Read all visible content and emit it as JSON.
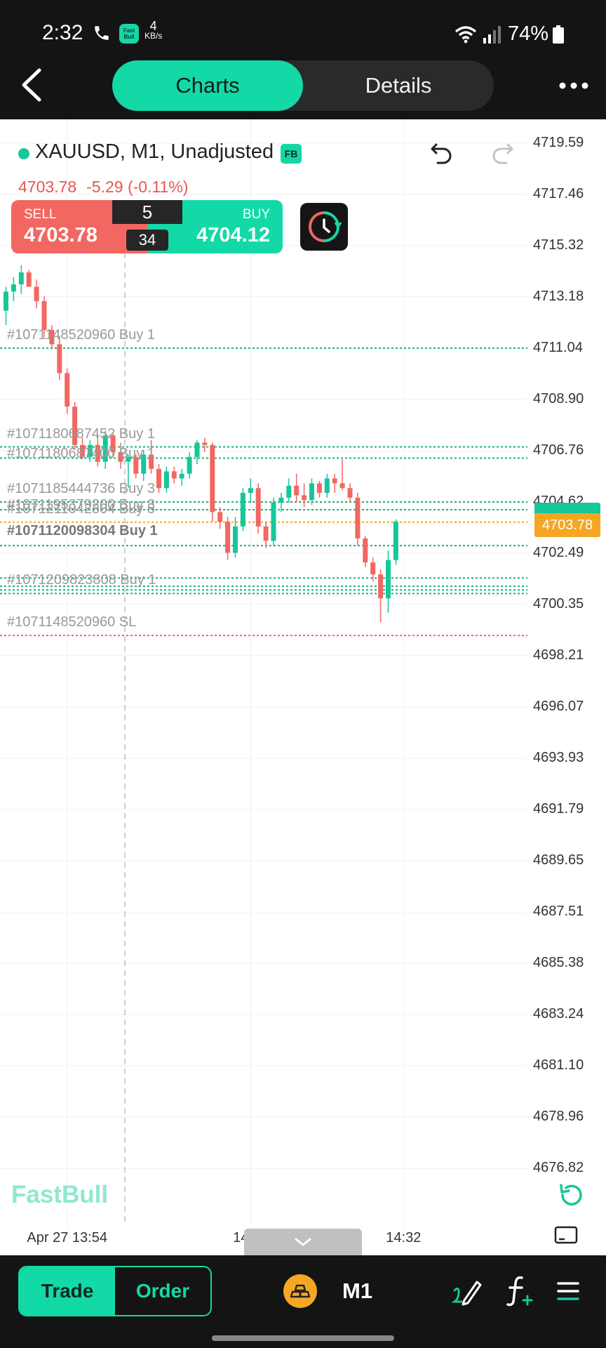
{
  "status_bar": {
    "time": "2:32",
    "net_speed_value": "4",
    "net_speed_unit": "KB/s",
    "app_icon_text": "Fast Bull",
    "battery": "74%"
  },
  "header": {
    "tabs": [
      {
        "label": "Charts",
        "active": true
      },
      {
        "label": "Details",
        "active": false
      }
    ]
  },
  "symbol": {
    "title": "XAUUSD, M1, Unadjusted",
    "badge": "FB",
    "last_price": "4703.78",
    "change": "-5.29 (-0.11%)"
  },
  "trade_panel": {
    "sell_label": "SELL",
    "sell_price": "4703.78",
    "buy_label": "BUY",
    "buy_price": "4704.12",
    "spread": "5",
    "spread_sub": "34"
  },
  "orders": [
    {
      "label": "#1071148520960 Buy 1",
      "price": 4711.04,
      "color": "#18b07f"
    },
    {
      "label": "#1071180687452 Buy 1",
      "price": 4706.92,
      "color": "#18b07f"
    },
    {
      "label": "#1071180687400 Buy 1",
      "price": 4706.45,
      "color": "#18b07f"
    },
    {
      "label": "#1071185444736 Buy 3",
      "price": 4704.62,
      "color": "#18b07f"
    },
    {
      "label": "#1071195379200 Buy 3",
      "price": 4704.3,
      "color": "#18b07f"
    },
    {
      "label": "#1071211042304 Buy 5",
      "price": 4703.78,
      "color": "#f5a623"
    },
    {
      "label": "#1071120098304 Buy 1",
      "price": 4702.8,
      "color": "#18b07f"
    },
    {
      "label": "#1071209823808 Buy 1",
      "price": 4701.1,
      "color": "#18b07f"
    },
    {
      "label": "#1071148520960 SL",
      "price": 4699.05,
      "color": "#f26761"
    }
  ],
  "chart_data": {
    "type": "candlestick",
    "symbol": "XAUUSD",
    "timeframe": "M1",
    "ylim": [
      4676.82,
      4719.59
    ],
    "y_ticks": [
      "4719.59",
      "4717.46",
      "4715.32",
      "4713.18",
      "4711.04",
      "4708.90",
      "4706.76",
      "4704.62",
      "4702.49",
      "4700.35",
      "4698.21",
      "4696.07",
      "4693.93",
      "4691.79",
      "4689.65",
      "4687.51",
      "4685.38",
      "4683.24",
      "4681.10",
      "4678.96",
      "4676.82"
    ],
    "current_price": "4703.78",
    "x_ticks": [
      {
        "label": "Apr 27 13:54",
        "index": 8
      },
      {
        "label": "14:13",
        "index": 32
      },
      {
        "label": "14:32",
        "index": 52
      }
    ],
    "candles": [
      [
        4712.6,
        4713.6,
        4712.0,
        4713.4
      ],
      [
        4713.4,
        4714.0,
        4713.0,
        4713.7
      ],
      [
        4713.7,
        4714.5,
        4713.3,
        4714.2
      ],
      [
        4714.2,
        4714.3,
        4713.6,
        4713.6
      ],
      [
        4713.6,
        4713.9,
        4712.7,
        4713.0
      ],
      [
        4713.0,
        4713.2,
        4711.5,
        4711.8
      ],
      [
        4711.8,
        4712.0,
        4711.0,
        4711.2
      ],
      [
        4711.2,
        4711.5,
        4709.7,
        4710.0
      ],
      [
        4710.0,
        4710.2,
        4708.3,
        4708.6
      ],
      [
        4708.6,
        4708.8,
        4706.8,
        4707.0
      ],
      [
        4707.0,
        4707.3,
        4706.4,
        4706.5
      ],
      [
        4706.5,
        4707.2,
        4706.3,
        4707.0
      ],
      [
        4707.0,
        4707.4,
        4706.1,
        4706.3
      ],
      [
        4706.3,
        4707.6,
        4706.0,
        4707.4
      ],
      [
        4707.4,
        4707.5,
        4706.5,
        4706.7
      ],
      [
        4706.7,
        4707.1,
        4706.0,
        4706.3
      ],
      [
        4706.3,
        4706.6,
        4705.2,
        4706.5
      ],
      [
        4706.5,
        4706.6,
        4705.6,
        4705.8
      ],
      [
        4705.8,
        4706.8,
        4705.5,
        4706.6
      ],
      [
        4706.6,
        4707.2,
        4705.8,
        4706.0
      ],
      [
        4706.0,
        4706.2,
        4705.0,
        4705.2
      ],
      [
        4705.2,
        4706.1,
        4705.0,
        4705.9
      ],
      [
        4705.9,
        4706.1,
        4705.4,
        4705.6
      ],
      [
        4705.6,
        4706.0,
        4705.3,
        4705.8
      ],
      [
        4705.8,
        4706.7,
        4705.6,
        4706.5
      ],
      [
        4706.5,
        4707.2,
        4706.2,
        4707.1
      ],
      [
        4707.1,
        4707.3,
        4706.7,
        4707.0
      ],
      [
        4707.0,
        4707.1,
        4703.8,
        4704.2
      ],
      [
        4704.2,
        4704.4,
        4703.5,
        4703.8
      ],
      [
        4703.8,
        4704.0,
        4702.2,
        4702.5
      ],
      [
        4702.5,
        4704.0,
        4702.3,
        4703.6
      ],
      [
        4703.6,
        4705.2,
        4703.4,
        4705.0
      ],
      [
        4705.0,
        4705.6,
        4704.6,
        4705.2
      ],
      [
        4705.2,
        4705.4,
        4703.3,
        4703.6
      ],
      [
        4703.6,
        4703.8,
        4702.7,
        4703.0
      ],
      [
        4703.0,
        4704.8,
        4702.8,
        4704.6
      ],
      [
        4704.6,
        4705.0,
        4704.2,
        4704.8
      ],
      [
        4704.8,
        4705.6,
        4704.6,
        4705.3
      ],
      [
        4705.3,
        4705.8,
        4704.6,
        4704.9
      ],
      [
        4704.9,
        4705.4,
        4704.4,
        4704.7
      ],
      [
        4704.7,
        4705.6,
        4704.5,
        4705.4
      ],
      [
        4705.4,
        4705.5,
        4704.8,
        4705.0
      ],
      [
        4705.0,
        4705.8,
        4704.8,
        4705.6
      ],
      [
        4705.6,
        4705.8,
        4705.0,
        4705.4
      ],
      [
        4705.4,
        4706.4,
        4705.1,
        4705.2
      ],
      [
        4705.2,
        4705.4,
        4704.6,
        4704.8
      ],
      [
        4704.8,
        4705.0,
        4702.8,
        4703.1
      ],
      [
        4703.1,
        4703.2,
        4701.9,
        4702.1
      ],
      [
        4702.1,
        4702.3,
        4701.3,
        4701.6
      ],
      [
        4701.6,
        4701.8,
        4699.6,
        4700.6
      ],
      [
        4700.6,
        4702.6,
        4700.0,
        4702.2
      ],
      [
        4702.2,
        4703.9,
        4702.0,
        4703.8
      ]
    ],
    "up_color": "#16c79a",
    "down_color": "#f26761"
  },
  "watermark": "FastBull",
  "bottom_bar": {
    "trade_label": "Trade",
    "order_label": "Order",
    "timeframe": "M1"
  }
}
